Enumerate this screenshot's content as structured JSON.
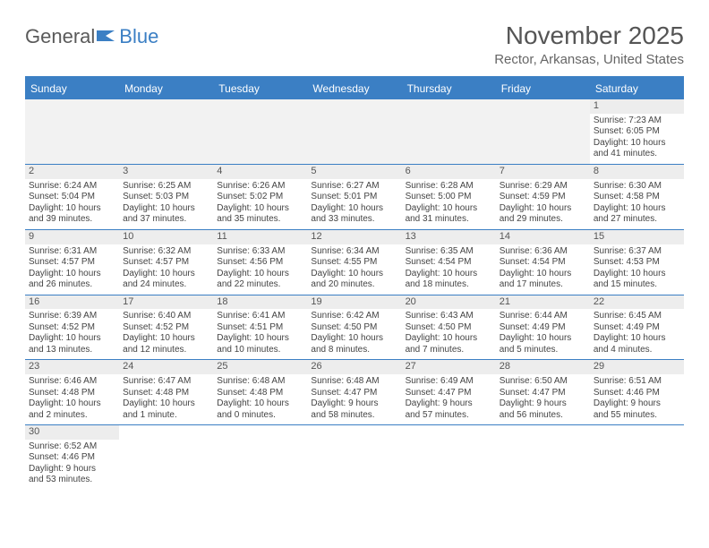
{
  "logo": {
    "part1": "General",
    "part2": "Blue"
  },
  "header": {
    "month_title": "November 2025",
    "location": "Rector, Arkansas, United States"
  },
  "colors": {
    "brand_blue": "#3b7fc4",
    "header_text": "#555555",
    "subtext": "#666666",
    "cell_text": "#444444",
    "daynum_bg": "#ededed",
    "empty_bg": "#f2f2f2",
    "background": "#ffffff"
  },
  "weekdays": [
    "Sunday",
    "Monday",
    "Tuesday",
    "Wednesday",
    "Thursday",
    "Friday",
    "Saturday"
  ],
  "weeks": [
    [
      null,
      null,
      null,
      null,
      null,
      null,
      {
        "n": "1",
        "sunrise": "Sunrise: 7:23 AM",
        "sunset": "Sunset: 6:05 PM",
        "day1": "Daylight: 10 hours",
        "day2": "and 41 minutes."
      }
    ],
    [
      {
        "n": "2",
        "sunrise": "Sunrise: 6:24 AM",
        "sunset": "Sunset: 5:04 PM",
        "day1": "Daylight: 10 hours",
        "day2": "and 39 minutes."
      },
      {
        "n": "3",
        "sunrise": "Sunrise: 6:25 AM",
        "sunset": "Sunset: 5:03 PM",
        "day1": "Daylight: 10 hours",
        "day2": "and 37 minutes."
      },
      {
        "n": "4",
        "sunrise": "Sunrise: 6:26 AM",
        "sunset": "Sunset: 5:02 PM",
        "day1": "Daylight: 10 hours",
        "day2": "and 35 minutes."
      },
      {
        "n": "5",
        "sunrise": "Sunrise: 6:27 AM",
        "sunset": "Sunset: 5:01 PM",
        "day1": "Daylight: 10 hours",
        "day2": "and 33 minutes."
      },
      {
        "n": "6",
        "sunrise": "Sunrise: 6:28 AM",
        "sunset": "Sunset: 5:00 PM",
        "day1": "Daylight: 10 hours",
        "day2": "and 31 minutes."
      },
      {
        "n": "7",
        "sunrise": "Sunrise: 6:29 AM",
        "sunset": "Sunset: 4:59 PM",
        "day1": "Daylight: 10 hours",
        "day2": "and 29 minutes."
      },
      {
        "n": "8",
        "sunrise": "Sunrise: 6:30 AM",
        "sunset": "Sunset: 4:58 PM",
        "day1": "Daylight: 10 hours",
        "day2": "and 27 minutes."
      }
    ],
    [
      {
        "n": "9",
        "sunrise": "Sunrise: 6:31 AM",
        "sunset": "Sunset: 4:57 PM",
        "day1": "Daylight: 10 hours",
        "day2": "and 26 minutes."
      },
      {
        "n": "10",
        "sunrise": "Sunrise: 6:32 AM",
        "sunset": "Sunset: 4:57 PM",
        "day1": "Daylight: 10 hours",
        "day2": "and 24 minutes."
      },
      {
        "n": "11",
        "sunrise": "Sunrise: 6:33 AM",
        "sunset": "Sunset: 4:56 PM",
        "day1": "Daylight: 10 hours",
        "day2": "and 22 minutes."
      },
      {
        "n": "12",
        "sunrise": "Sunrise: 6:34 AM",
        "sunset": "Sunset: 4:55 PM",
        "day1": "Daylight: 10 hours",
        "day2": "and 20 minutes."
      },
      {
        "n": "13",
        "sunrise": "Sunrise: 6:35 AM",
        "sunset": "Sunset: 4:54 PM",
        "day1": "Daylight: 10 hours",
        "day2": "and 18 minutes."
      },
      {
        "n": "14",
        "sunrise": "Sunrise: 6:36 AM",
        "sunset": "Sunset: 4:54 PM",
        "day1": "Daylight: 10 hours",
        "day2": "and 17 minutes."
      },
      {
        "n": "15",
        "sunrise": "Sunrise: 6:37 AM",
        "sunset": "Sunset: 4:53 PM",
        "day1": "Daylight: 10 hours",
        "day2": "and 15 minutes."
      }
    ],
    [
      {
        "n": "16",
        "sunrise": "Sunrise: 6:39 AM",
        "sunset": "Sunset: 4:52 PM",
        "day1": "Daylight: 10 hours",
        "day2": "and 13 minutes."
      },
      {
        "n": "17",
        "sunrise": "Sunrise: 6:40 AM",
        "sunset": "Sunset: 4:52 PM",
        "day1": "Daylight: 10 hours",
        "day2": "and 12 minutes."
      },
      {
        "n": "18",
        "sunrise": "Sunrise: 6:41 AM",
        "sunset": "Sunset: 4:51 PM",
        "day1": "Daylight: 10 hours",
        "day2": "and 10 minutes."
      },
      {
        "n": "19",
        "sunrise": "Sunrise: 6:42 AM",
        "sunset": "Sunset: 4:50 PM",
        "day1": "Daylight: 10 hours",
        "day2": "and 8 minutes."
      },
      {
        "n": "20",
        "sunrise": "Sunrise: 6:43 AM",
        "sunset": "Sunset: 4:50 PM",
        "day1": "Daylight: 10 hours",
        "day2": "and 7 minutes."
      },
      {
        "n": "21",
        "sunrise": "Sunrise: 6:44 AM",
        "sunset": "Sunset: 4:49 PM",
        "day1": "Daylight: 10 hours",
        "day2": "and 5 minutes."
      },
      {
        "n": "22",
        "sunrise": "Sunrise: 6:45 AM",
        "sunset": "Sunset: 4:49 PM",
        "day1": "Daylight: 10 hours",
        "day2": "and 4 minutes."
      }
    ],
    [
      {
        "n": "23",
        "sunrise": "Sunrise: 6:46 AM",
        "sunset": "Sunset: 4:48 PM",
        "day1": "Daylight: 10 hours",
        "day2": "and 2 minutes."
      },
      {
        "n": "24",
        "sunrise": "Sunrise: 6:47 AM",
        "sunset": "Sunset: 4:48 PM",
        "day1": "Daylight: 10 hours",
        "day2": "and 1 minute."
      },
      {
        "n": "25",
        "sunrise": "Sunrise: 6:48 AM",
        "sunset": "Sunset: 4:48 PM",
        "day1": "Daylight: 10 hours",
        "day2": "and 0 minutes."
      },
      {
        "n": "26",
        "sunrise": "Sunrise: 6:48 AM",
        "sunset": "Sunset: 4:47 PM",
        "day1": "Daylight: 9 hours",
        "day2": "and 58 minutes."
      },
      {
        "n": "27",
        "sunrise": "Sunrise: 6:49 AM",
        "sunset": "Sunset: 4:47 PM",
        "day1": "Daylight: 9 hours",
        "day2": "and 57 minutes."
      },
      {
        "n": "28",
        "sunrise": "Sunrise: 6:50 AM",
        "sunset": "Sunset: 4:47 PM",
        "day1": "Daylight: 9 hours",
        "day2": "and 56 minutes."
      },
      {
        "n": "29",
        "sunrise": "Sunrise: 6:51 AM",
        "sunset": "Sunset: 4:46 PM",
        "day1": "Daylight: 9 hours",
        "day2": "and 55 minutes."
      }
    ],
    [
      {
        "n": "30",
        "sunrise": "Sunrise: 6:52 AM",
        "sunset": "Sunset: 4:46 PM",
        "day1": "Daylight: 9 hours",
        "day2": "and 53 minutes."
      },
      null,
      null,
      null,
      null,
      null,
      null
    ]
  ]
}
